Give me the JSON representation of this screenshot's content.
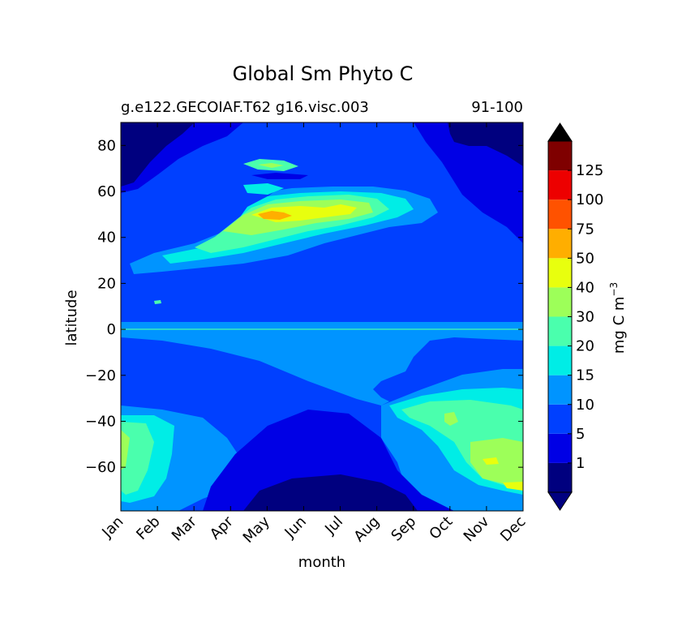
{
  "chart_data": {
    "type": "heatmap",
    "title": "Global Sm Phyto C",
    "subtitle_left": "g.e122.GECOIAF.T62 g16.visc.003",
    "subtitle_right": "91-100",
    "xlabel": "month",
    "ylabel": "latitude",
    "x_tick_labels": [
      "Jan",
      "Feb",
      "Mar",
      "Apr",
      "May",
      "Jun",
      "Jul",
      "Aug",
      "Sep",
      "Oct",
      "Nov",
      "Dec"
    ],
    "x_ticks": [
      1,
      2,
      3,
      4,
      5,
      6,
      7,
      8,
      9,
      10,
      11,
      12
    ],
    "xlim": [
      1,
      12
    ],
    "y_ticks": [
      80,
      60,
      40,
      20,
      0,
      -20,
      -40,
      -60
    ],
    "y_tick_labels": [
      "80",
      "60",
      "40",
      "20",
      "0",
      "−20",
      "−40",
      "−60"
    ],
    "ylim": [
      -79,
      90
    ],
    "colorbar": {
      "label": "mg C m",
      "label_superscript": "−3",
      "levels": [
        0,
        1,
        5,
        10,
        15,
        20,
        30,
        40,
        50,
        75,
        100,
        125,
        150
      ],
      "tick_labels": [
        "1",
        "5",
        "10",
        "15",
        "20",
        "30",
        "40",
        "50",
        "75",
        "100",
        "125"
      ],
      "colors": [
        "#00007f",
        "#0000e5",
        "#0040ff",
        "#0094ff",
        "#00ede6",
        "#4affad",
        "#9dff59",
        "#e8ff0e",
        "#ffae00",
        "#ff5200",
        "#ed0000",
        "#7f0000"
      ],
      "extend": "both",
      "under_color": "#000080",
      "over_color": "#000000"
    }
  }
}
